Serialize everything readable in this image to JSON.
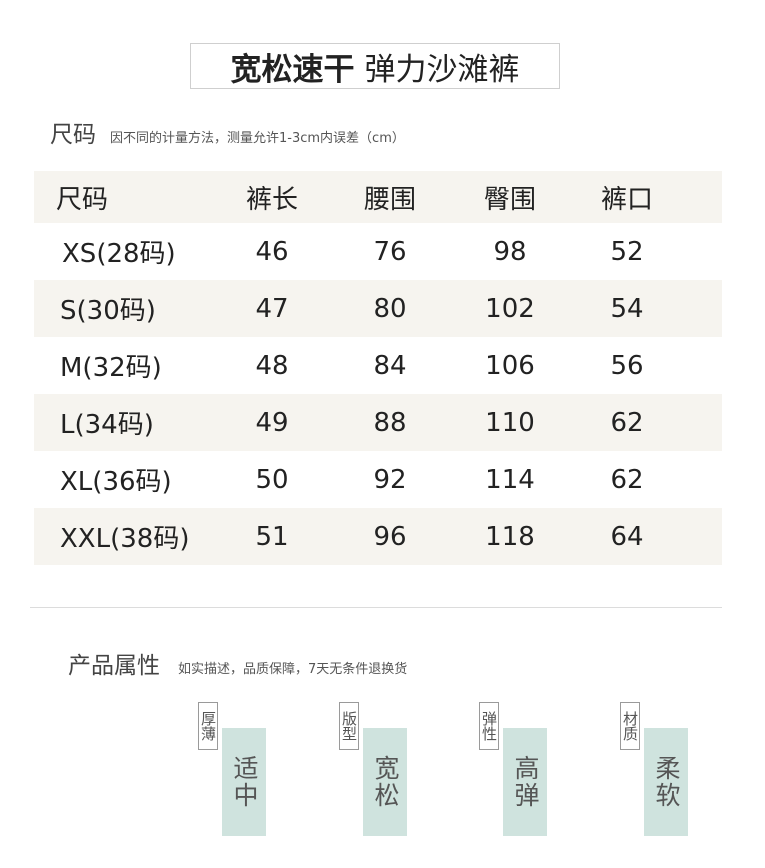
{
  "title": {
    "bold": "宽松速干",
    "rest": "弹力沙滩裤"
  },
  "size_section": {
    "heading": "尺码",
    "note": "因不同的计量方法，测量允许1-3cm内误差（cm）"
  },
  "table": {
    "headers": [
      "尺码",
      "裤长",
      "腰围",
      "臀围",
      "裤口"
    ],
    "rows": [
      [
        "XS(28码)",
        "46",
        "76",
        "98",
        "52"
      ],
      [
        "S(30码)",
        "47",
        "80",
        "102",
        "54"
      ],
      [
        "M(32码)",
        "48",
        "84",
        "106",
        "56"
      ],
      [
        "L(34码)",
        "49",
        "88",
        "110",
        "62"
      ],
      [
        "XL(36码)",
        "50",
        "92",
        "114",
        "62"
      ],
      [
        "XXL(38码)",
        "51",
        "96",
        "118",
        "64"
      ]
    ]
  },
  "attr_section": {
    "heading": "产品属性",
    "note": "如实描述，品质保障，7天无条件退换货"
  },
  "attributes": [
    {
      "label": "厚薄",
      "value": "适中"
    },
    {
      "label": "版型",
      "value": "宽松"
    },
    {
      "label": "弹性",
      "value": "高弹"
    },
    {
      "label": "材质",
      "value": "柔软"
    }
  ],
  "colors": {
    "shade": "#f6f4ef",
    "value_box": "#cfe3de"
  }
}
